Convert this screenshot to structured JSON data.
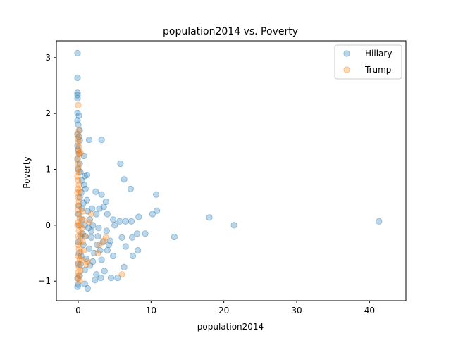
{
  "chart_data": {
    "type": "scatter",
    "title": "population2014 vs. Poverty",
    "xlabel": "population2014",
    "ylabel": "Poverty",
    "xlim": [
      -3,
      45
    ],
    "ylim": [
      -1.35,
      3.3
    ],
    "xticks": [
      0,
      10,
      20,
      30,
      40
    ],
    "yticks": [
      -1,
      0,
      1,
      2,
      3
    ],
    "grid": false,
    "legend_position": "top-right",
    "series": [
      {
        "name": "Hillary",
        "color": "#1f77b4",
        "points": [
          [
            -0.1,
            3.08
          ],
          [
            -0.1,
            2.64
          ],
          [
            -0.1,
            2.37
          ],
          [
            -0.1,
            2.33
          ],
          [
            -0.1,
            2.27
          ],
          [
            -0.1,
            2.01
          ],
          [
            0.1,
            1.96
          ],
          [
            -0.1,
            1.88
          ],
          [
            0.0,
            1.8
          ],
          [
            0.2,
            1.7
          ],
          [
            -0.1,
            1.63
          ],
          [
            0.1,
            1.58
          ],
          [
            0.2,
            1.52
          ],
          [
            -0.1,
            1.42
          ],
          [
            0.0,
            1.35
          ],
          [
            0.1,
            1.28
          ],
          [
            0.8,
            1.24
          ],
          [
            1.5,
            1.53
          ],
          [
            3.2,
            1.53
          ],
          [
            -0.1,
            1.18
          ],
          [
            0.2,
            1.1
          ],
          [
            0.0,
            1.0
          ],
          [
            0.3,
            0.95
          ],
          [
            0.9,
            0.88
          ],
          [
            1.2,
            0.9
          ],
          [
            0.5,
            0.8
          ],
          [
            0.8,
            0.72
          ],
          [
            1.0,
            0.65
          ],
          [
            0.4,
            0.58
          ],
          [
            0.2,
            0.5
          ],
          [
            5.8,
            1.1
          ],
          [
            6.3,
            0.82
          ],
          [
            7.2,
            0.65
          ],
          [
            10.7,
            0.55
          ],
          [
            2.4,
            0.6
          ],
          [
            3.2,
            0.55
          ],
          [
            3.8,
            0.42
          ],
          [
            3.5,
            0.33
          ],
          [
            2.9,
            0.3
          ],
          [
            1.9,
            0.3
          ],
          [
            1.3,
            0.25
          ],
          [
            2.5,
            0.2
          ],
          [
            4.0,
            0.2
          ],
          [
            10.8,
            0.26
          ],
          [
            10.2,
            0.2
          ],
          [
            8.3,
            0.15
          ],
          [
            18.0,
            0.14
          ],
          [
            41.3,
            0.07
          ],
          [
            21.4,
            0.0
          ],
          [
            4.8,
            0.1
          ],
          [
            5.7,
            0.07
          ],
          [
            6.5,
            0.07
          ],
          [
            7.3,
            0.07
          ],
          [
            5.0,
            0.0
          ],
          [
            3.9,
            -0.1
          ],
          [
            2.8,
            -0.05
          ],
          [
            2.0,
            0.0
          ],
          [
            1.4,
            -0.05
          ],
          [
            0.9,
            0.0
          ],
          [
            0.5,
            0.1
          ],
          [
            0.3,
            -0.2
          ],
          [
            1.0,
            -0.2
          ],
          [
            1.8,
            -0.22
          ],
          [
            2.7,
            -0.2
          ],
          [
            3.4,
            -0.3
          ],
          [
            4.4,
            -0.28
          ],
          [
            6.0,
            -0.22
          ],
          [
            7.4,
            -0.22
          ],
          [
            8.1,
            -0.15
          ],
          [
            9.2,
            -0.15
          ],
          [
            13.2,
            -0.21
          ],
          [
            6.5,
            -0.38
          ],
          [
            4.0,
            -0.45
          ],
          [
            3.0,
            -0.45
          ],
          [
            2.2,
            -0.5
          ],
          [
            1.5,
            -0.42
          ],
          [
            0.7,
            -0.35
          ],
          [
            0.4,
            -0.55
          ],
          [
            1.1,
            -0.6
          ],
          [
            2.0,
            -0.65
          ],
          [
            3.2,
            -0.62
          ],
          [
            4.8,
            -0.55
          ],
          [
            7.5,
            -0.55
          ],
          [
            8.2,
            -0.45
          ],
          [
            6.3,
            -0.75
          ],
          [
            3.6,
            -0.82
          ],
          [
            2.5,
            -0.88
          ],
          [
            1.6,
            -0.72
          ],
          [
            0.9,
            -0.8
          ],
          [
            0.2,
            -0.9
          ],
          [
            0.9,
            -1.05
          ],
          [
            1.3,
            -1.13
          ],
          [
            2.3,
            -0.98
          ],
          [
            3.1,
            -0.94
          ],
          [
            4.5,
            -0.94
          ],
          [
            5.4,
            -0.94
          ],
          [
            -0.1,
            -0.95
          ],
          [
            0.0,
            -1.06
          ],
          [
            -0.1,
            -1.1
          ],
          [
            0.3,
            -0.7
          ],
          [
            1.8,
            -0.1
          ],
          [
            2.6,
            -0.35
          ],
          [
            4.2,
            -0.35
          ],
          [
            0.6,
            -0.15
          ],
          [
            1.2,
            0.45
          ],
          [
            0.1,
            0.35
          ],
          [
            0.0,
            0.2
          ],
          [
            0.1,
            0.0
          ],
          [
            0.0,
            -0.3
          ],
          [
            0.1,
            -0.5
          ],
          [
            0.0,
            -0.7
          ],
          [
            0.5,
            0.3
          ],
          [
            1.6,
            0.1
          ],
          [
            0.7,
            0.4
          ]
        ]
      },
      {
        "name": "Trump",
        "color": "#ff7f0e",
        "points": [
          [
            0.0,
            2.15
          ],
          [
            -0.1,
            1.62
          ],
          [
            0.0,
            1.55
          ],
          [
            0.0,
            1.48
          ],
          [
            0.1,
            1.4
          ],
          [
            0.0,
            1.33
          ],
          [
            0.2,
            1.28
          ],
          [
            0.3,
            1.3
          ],
          [
            -0.1,
            1.2
          ],
          [
            0.0,
            1.1
          ],
          [
            0.0,
            1.02
          ],
          [
            0.1,
            0.95
          ],
          [
            -0.1,
            0.88
          ],
          [
            0.0,
            0.8
          ],
          [
            0.1,
            0.72
          ],
          [
            0.0,
            0.65
          ],
          [
            -0.1,
            0.58
          ],
          [
            0.0,
            0.5
          ],
          [
            0.1,
            0.42
          ],
          [
            0.0,
            0.35
          ],
          [
            0.0,
            0.28
          ],
          [
            0.1,
            0.2
          ],
          [
            0.2,
            0.12
          ],
          [
            0.0,
            0.05
          ],
          [
            0.3,
            0.0
          ],
          [
            0.5,
            -0.05
          ],
          [
            0.1,
            -0.1
          ],
          [
            0.4,
            -0.15
          ],
          [
            0.0,
            -0.2
          ],
          [
            0.2,
            -0.28
          ],
          [
            0.6,
            -0.3
          ],
          [
            0.0,
            -0.35
          ],
          [
            0.1,
            -0.42
          ],
          [
            0.3,
            -0.48
          ],
          [
            0.0,
            -0.55
          ],
          [
            0.2,
            -0.6
          ],
          [
            0.5,
            -0.62
          ],
          [
            0.0,
            -0.68
          ],
          [
            0.1,
            -0.75
          ],
          [
            0.3,
            -0.8
          ],
          [
            0.0,
            -0.85
          ],
          [
            0.1,
            -0.9
          ],
          [
            1.1,
            -0.7
          ],
          [
            1.3,
            -0.65
          ],
          [
            0.8,
            -0.45
          ],
          [
            0.9,
            -0.2
          ],
          [
            1.5,
            0.05
          ],
          [
            1.8,
            0.2
          ],
          [
            2.7,
            -0.5
          ],
          [
            3.5,
            -0.28
          ],
          [
            3.8,
            -0.22
          ],
          [
            2.9,
            -0.35
          ],
          [
            6.0,
            -0.88
          ],
          [
            0.7,
            0.1
          ],
          [
            0.0,
            -0.95
          ],
          [
            -0.1,
            0.0
          ],
          [
            0.2,
            0.6
          ],
          [
            0.1,
            1.7
          ],
          [
            0.2,
            -1.0
          ],
          [
            0.6,
            0.25
          ]
        ]
      }
    ]
  }
}
